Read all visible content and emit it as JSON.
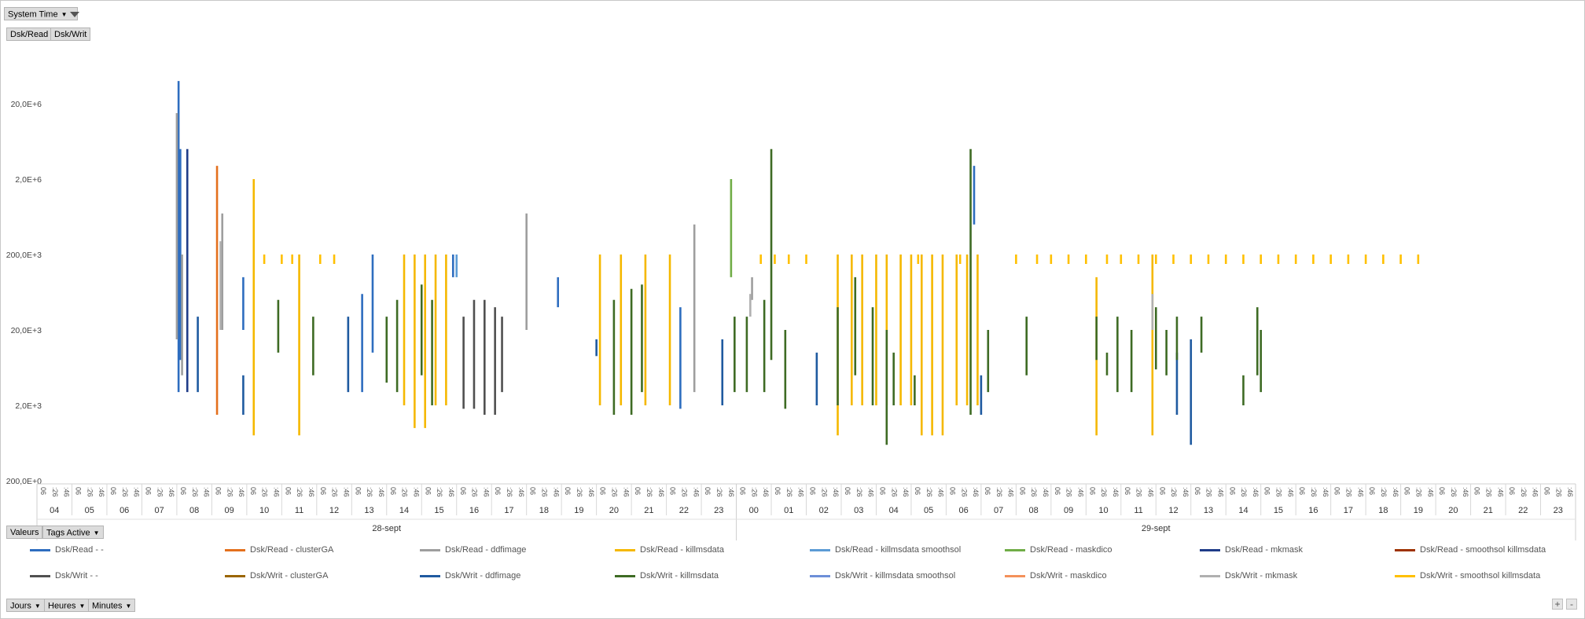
{
  "filters": {
    "system_time": "System Time",
    "values_label": "Valeurs",
    "tags_active": "Tags Active",
    "jours": "Jours",
    "heures": "Heures",
    "minutes": "Minutes"
  },
  "series_buttons": [
    "Dsk/Read",
    "Dsk/Writ"
  ],
  "zoom": {
    "plus": "+",
    "minus": "-"
  },
  "chart_data": {
    "type": "line",
    "yscale": "log",
    "ylim": [
      0,
      50000000
    ],
    "y_ticks": [
      "200,0E+0",
      "2,0E+3",
      "20,0E+3",
      "200,0E+3",
      "2,0E+6",
      "20,0E+6"
    ],
    "x_minute_labels": [
      "06",
      ":26",
      ":46"
    ],
    "days": [
      {
        "label": "28-sept",
        "hours": [
          "04",
          "05",
          "06",
          "07",
          "08",
          "09",
          "10",
          "11",
          "12",
          "13",
          "14",
          "15",
          "16",
          "17",
          "18",
          "19",
          "20",
          "21",
          "22",
          "23"
        ]
      },
      {
        "label": "29-sept",
        "hours": [
          "00",
          "01",
          "02",
          "03",
          "04",
          "05",
          "06",
          "07",
          "08",
          "09",
          "10",
          "11",
          "12",
          "13",
          "14",
          "15",
          "16",
          "17",
          "18",
          "19",
          "20",
          "21",
          "22",
          "23"
        ]
      }
    ],
    "legend": [
      {
        "name": "Dsk/Read -  -",
        "color": "#2e6dbf"
      },
      {
        "name": "Dsk/Read -  clusterGA",
        "color": "#e4701d"
      },
      {
        "name": "Dsk/Read -  ddfimage",
        "color": "#9e9e9e"
      },
      {
        "name": "Dsk/Read -  killmsdata",
        "color": "#f5b800"
      },
      {
        "name": "Dsk/Read -  killmsdata smoothsol",
        "color": "#5b9bd5"
      },
      {
        "name": "Dsk/Read -  maskdico",
        "color": "#70ad47"
      },
      {
        "name": "Dsk/Read -  mkmask",
        "color": "#1f3c88"
      },
      {
        "name": "Dsk/Read -  smoothsol killmsdata",
        "color": "#9e3200"
      },
      {
        "name": "Dsk/Writ -  -",
        "color": "#505050"
      },
      {
        "name": "Dsk/Writ -  clusterGA",
        "color": "#9a6500"
      },
      {
        "name": "Dsk/Writ -  ddfimage",
        "color": "#1f5aa0"
      },
      {
        "name": "Dsk/Writ -  killmsdata",
        "color": "#3e6b24"
      },
      {
        "name": "Dsk/Writ -  killmsdata smoothsol",
        "color": "#6d8fd8"
      },
      {
        "name": "Dsk/Writ -  maskdico",
        "color": "#f4915a"
      },
      {
        "name": "Dsk/Writ -  mkmask",
        "color": "#b0b0b0"
      },
      {
        "name": "Dsk/Writ -  smoothsol killmsdata",
        "color": "#ffc000"
      }
    ],
    "series": [
      {
        "name": "Dsk/Read -  -",
        "color": "#2e6dbf",
        "spikes": [
          [
            4.05,
            3000,
            40000000
          ],
          [
            4.1,
            8000,
            5000000
          ],
          [
            5.9,
            20000,
            100000
          ],
          [
            9.3,
            3000,
            60000
          ],
          [
            9.6,
            10000,
            200000
          ],
          [
            11.9,
            100000,
            200000
          ],
          [
            14.9,
            40000,
            100000
          ],
          [
            18.4,
            1800,
            40000
          ],
          [
            26.8,
            500000,
            3000000
          ]
        ]
      },
      {
        "name": "Dsk/Read -  clusterGA",
        "color": "#e4701d",
        "spikes": [
          [
            5.15,
            1500,
            3000000
          ]
        ]
      },
      {
        "name": "Dsk/Read -  ddfimage",
        "color": "#9e9e9e",
        "spikes": [
          [
            4.0,
            15000,
            15000000
          ],
          [
            4.15,
            5000,
            200000
          ],
          [
            5.3,
            20000,
            700000
          ],
          [
            14.0,
            20000,
            700000
          ],
          [
            18.8,
            3000,
            500000
          ],
          [
            20.45,
            50000,
            100000
          ]
        ]
      },
      {
        "name": "Dsk/Read -  killmsdata",
        "color": "#f5b800",
        "spikes": [
          [
            6.2,
            800,
            2000000
          ],
          [
            7.5,
            800,
            200000
          ],
          [
            10.5,
            2000,
            200000
          ],
          [
            10.8,
            1000,
            200000
          ],
          [
            11.1,
            1000,
            200000
          ],
          [
            11.4,
            2000,
            200000
          ],
          [
            11.7,
            2000,
            200000
          ],
          [
            16.1,
            2000,
            200000
          ],
          [
            16.7,
            2000,
            200000
          ],
          [
            17.4,
            2000,
            200000
          ],
          [
            18.1,
            2000,
            200000
          ],
          [
            22.9,
            800,
            200000
          ],
          [
            23.3,
            2000,
            200000
          ],
          [
            23.6,
            2000,
            200000
          ],
          [
            24.0,
            2000,
            200000
          ],
          [
            24.3,
            2000,
            200000
          ],
          [
            24.7,
            2000,
            200000
          ],
          [
            25.0,
            2000,
            200000
          ],
          [
            25.3,
            800,
            200000
          ],
          [
            25.6,
            800,
            200000
          ],
          [
            25.9,
            800,
            200000
          ],
          [
            26.3,
            2000,
            200000
          ],
          [
            26.6,
            2000,
            200000
          ],
          [
            26.9,
            2000,
            200000
          ],
          [
            30.3,
            800,
            100000
          ],
          [
            31.9,
            800,
            200000
          ]
        ]
      },
      {
        "name": "Dsk/Read -  killmsdata smoothsol",
        "color": "#5b9bd5",
        "spikes": [
          [
            12.0,
            100000,
            200000
          ]
        ]
      },
      {
        "name": "Dsk/Read -  maskdico",
        "color": "#70ad47",
        "spikes": [
          [
            19.85,
            100000,
            2000000
          ]
        ]
      },
      {
        "name": "Dsk/Read -  mkmask",
        "color": "#1f3c88",
        "spikes": [
          [
            4.3,
            3000,
            5000000
          ]
        ]
      },
      {
        "name": "Dsk/Writ -  -",
        "color": "#505050",
        "spikes": [
          [
            12.2,
            1800,
            30000
          ],
          [
            12.5,
            1800,
            50000
          ],
          [
            12.8,
            1500,
            50000
          ],
          [
            13.1,
            1500,
            40000
          ],
          [
            13.3,
            3000,
            30000
          ]
        ]
      },
      {
        "name": "Dsk/Writ -  ddfimage",
        "color": "#1f5aa0",
        "spikes": [
          [
            4.6,
            3000,
            30000
          ],
          [
            5.9,
            1500,
            5000
          ],
          [
            8.9,
            3000,
            30000
          ],
          [
            16.0,
            9000,
            15000
          ],
          [
            19.6,
            2000,
            15000
          ],
          [
            22.3,
            2000,
            10000
          ],
          [
            27.0,
            1500,
            5000
          ],
          [
            32.6,
            1500,
            10000
          ],
          [
            33.0,
            600,
            15000
          ]
        ]
      },
      {
        "name": "Dsk/Writ -  killmsdata",
        "color": "#3e6b24",
        "spikes": [
          [
            6.9,
            10000,
            50000
          ],
          [
            7.9,
            5000,
            30000
          ],
          [
            10.0,
            4000,
            30000
          ],
          [
            10.3,
            3000,
            50000
          ],
          [
            11.0,
            5000,
            80000
          ],
          [
            11.3,
            2000,
            50000
          ],
          [
            16.5,
            1500,
            50000
          ],
          [
            17.0,
            1500,
            70000
          ],
          [
            17.3,
            3000,
            80000
          ],
          [
            19.95,
            3000,
            30000
          ],
          [
            20.3,
            3000,
            30000
          ],
          [
            20.8,
            3000,
            50000
          ],
          [
            21.0,
            8000,
            5000000
          ],
          [
            21.4,
            1800,
            20000
          ],
          [
            22.9,
            2000,
            40000
          ],
          [
            23.4,
            5000,
            100000
          ],
          [
            23.9,
            2000,
            40000
          ],
          [
            24.3,
            600,
            20000
          ],
          [
            24.5,
            2000,
            10000
          ],
          [
            25.1,
            2000,
            5000
          ],
          [
            26.7,
            1500,
            5000000
          ],
          [
            27.2,
            3000,
            20000
          ],
          [
            28.3,
            5000,
            30000
          ],
          [
            30.3,
            8000,
            30000
          ],
          [
            30.6,
            5000,
            10000
          ],
          [
            30.9,
            3000,
            30000
          ],
          [
            31.3,
            3000,
            20000
          ],
          [
            32.0,
            6000,
            40000
          ],
          [
            32.3,
            5000,
            20000
          ],
          [
            32.6,
            8000,
            30000
          ],
          [
            33.3,
            10000,
            30000
          ],
          [
            34.5,
            2000,
            5000
          ],
          [
            34.9,
            5000,
            40000
          ],
          [
            35.0,
            3000,
            20000
          ]
        ]
      },
      {
        "name": "Dsk/Writ -  mkmask",
        "color": "#b0b0b0",
        "spikes": [
          [
            5.25,
            20000,
            300000
          ],
          [
            20.4,
            30000,
            60000
          ],
          [
            31.9,
            20000,
            60000
          ]
        ]
      },
      {
        "name": "Dsk/Writ -  smoothsol killmsdata",
        "color": "#ffc000",
        "spikes": [
          [
            6.5,
            150000,
            200000
          ],
          [
            7.0,
            150000,
            200000
          ],
          [
            7.3,
            150000,
            200000
          ],
          [
            8.1,
            150000,
            200000
          ],
          [
            8.5,
            150000,
            200000
          ],
          [
            20.7,
            150000,
            200000
          ],
          [
            21.1,
            150000,
            200000
          ],
          [
            21.5,
            150000,
            200000
          ],
          [
            22.0,
            150000,
            200000
          ],
          [
            25.2,
            150000,
            200000
          ],
          [
            26.4,
            150000,
            200000
          ],
          [
            28.0,
            150000,
            200000
          ],
          [
            28.6,
            150000,
            200000
          ],
          [
            29.0,
            150000,
            200000
          ],
          [
            29.5,
            150000,
            200000
          ],
          [
            30.0,
            150000,
            200000
          ],
          [
            30.6,
            150000,
            200000
          ],
          [
            31.0,
            150000,
            200000
          ],
          [
            31.5,
            150000,
            200000
          ],
          [
            32.0,
            150000,
            200000
          ],
          [
            32.5,
            150000,
            200000
          ],
          [
            33.0,
            150000,
            200000
          ],
          [
            33.5,
            150000,
            200000
          ],
          [
            34.0,
            150000,
            200000
          ],
          [
            34.5,
            150000,
            200000
          ],
          [
            35.0,
            150000,
            200000
          ],
          [
            35.5,
            150000,
            200000
          ],
          [
            36.0,
            150000,
            200000
          ],
          [
            36.5,
            150000,
            200000
          ],
          [
            37.0,
            150000,
            200000
          ],
          [
            37.5,
            150000,
            200000
          ],
          [
            38.0,
            150000,
            200000
          ],
          [
            38.5,
            150000,
            200000
          ],
          [
            39.0,
            150000,
            200000
          ],
          [
            39.5,
            150000,
            200000
          ]
        ]
      }
    ]
  }
}
